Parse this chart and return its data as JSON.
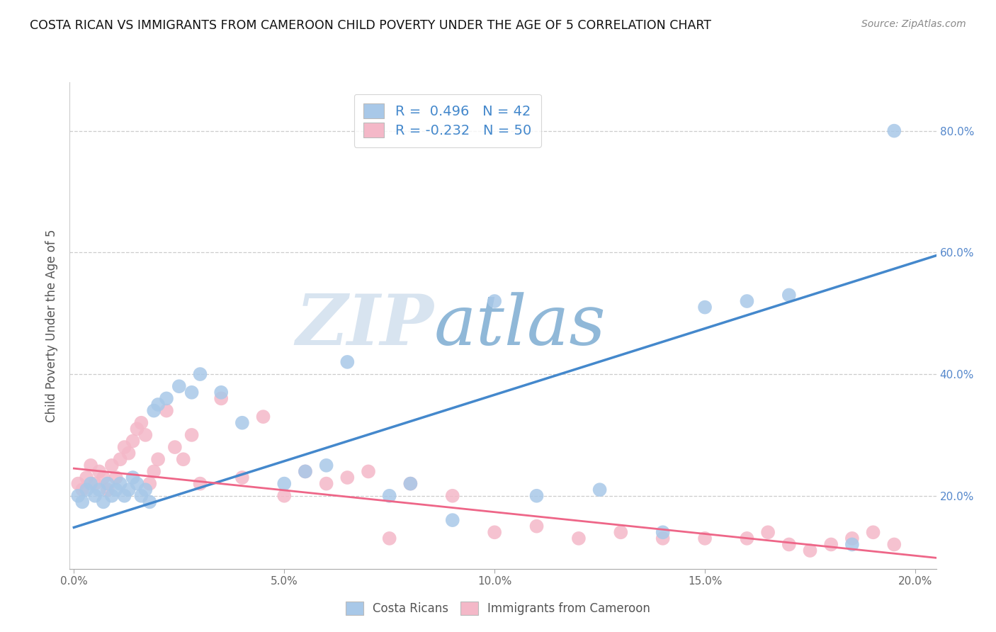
{
  "title": "COSTA RICAN VS IMMIGRANTS FROM CAMEROON CHILD POVERTY UNDER THE AGE OF 5 CORRELATION CHART",
  "source": "Source: ZipAtlas.com",
  "ylabel": "Child Poverty Under the Age of 5",
  "xlim": [
    -0.001,
    0.205
  ],
  "ylim": [
    0.08,
    0.88
  ],
  "xticks": [
    0.0,
    0.05,
    0.1,
    0.15,
    0.2
  ],
  "yticks": [
    0.2,
    0.4,
    0.6,
    0.8
  ],
  "xticklabels": [
    "0.0%",
    "5.0%",
    "10.0%",
    "15.0%",
    "20.0%"
  ],
  "yticklabels": [
    "20.0%",
    "40.0%",
    "60.0%",
    "80.0%"
  ],
  "blue_R": 0.496,
  "blue_N": 42,
  "pink_R": -0.232,
  "pink_N": 50,
  "blue_color": "#a8c8e8",
  "pink_color": "#f4b8c8",
  "blue_line_color": "#4488cc",
  "pink_line_color": "#ee6688",
  "tick_color": "#5588cc",
  "watermark_zip": "ZIP",
  "watermark_atlas": "atlas",
  "watermark_color_zip": "#d8e4f0",
  "watermark_color_atlas": "#90b8d8",
  "background_color": "#ffffff",
  "grid_color": "#cccccc",
  "blue_scatter_x": [
    0.001,
    0.002,
    0.003,
    0.004,
    0.005,
    0.006,
    0.007,
    0.008,
    0.009,
    0.01,
    0.011,
    0.012,
    0.013,
    0.014,
    0.015,
    0.016,
    0.017,
    0.018,
    0.019,
    0.02,
    0.022,
    0.025,
    0.028,
    0.03,
    0.035,
    0.04,
    0.05,
    0.055,
    0.06,
    0.065,
    0.075,
    0.08,
    0.09,
    0.1,
    0.11,
    0.125,
    0.14,
    0.15,
    0.16,
    0.17,
    0.185,
    0.195
  ],
  "blue_scatter_y": [
    0.2,
    0.19,
    0.21,
    0.22,
    0.2,
    0.21,
    0.19,
    0.22,
    0.2,
    0.21,
    0.22,
    0.2,
    0.21,
    0.23,
    0.22,
    0.2,
    0.21,
    0.19,
    0.34,
    0.35,
    0.36,
    0.38,
    0.37,
    0.4,
    0.37,
    0.32,
    0.22,
    0.24,
    0.25,
    0.42,
    0.2,
    0.22,
    0.16,
    0.52,
    0.2,
    0.21,
    0.14,
    0.51,
    0.52,
    0.53,
    0.12,
    0.8
  ],
  "pink_scatter_x": [
    0.001,
    0.002,
    0.003,
    0.004,
    0.005,
    0.006,
    0.007,
    0.008,
    0.009,
    0.01,
    0.011,
    0.012,
    0.013,
    0.014,
    0.015,
    0.016,
    0.017,
    0.018,
    0.019,
    0.02,
    0.022,
    0.024,
    0.026,
    0.028,
    0.03,
    0.035,
    0.04,
    0.045,
    0.05,
    0.055,
    0.06,
    0.065,
    0.07,
    0.075,
    0.08,
    0.09,
    0.1,
    0.11,
    0.12,
    0.13,
    0.14,
    0.15,
    0.16,
    0.165,
    0.17,
    0.175,
    0.18,
    0.185,
    0.19,
    0.195
  ],
  "pink_scatter_y": [
    0.22,
    0.21,
    0.23,
    0.25,
    0.22,
    0.24,
    0.23,
    0.21,
    0.25,
    0.23,
    0.26,
    0.28,
    0.27,
    0.29,
    0.31,
    0.32,
    0.3,
    0.22,
    0.24,
    0.26,
    0.34,
    0.28,
    0.26,
    0.3,
    0.22,
    0.36,
    0.23,
    0.33,
    0.2,
    0.24,
    0.22,
    0.23,
    0.24,
    0.13,
    0.22,
    0.2,
    0.14,
    0.15,
    0.13,
    0.14,
    0.13,
    0.13,
    0.13,
    0.14,
    0.12,
    0.11,
    0.12,
    0.13,
    0.14,
    0.12
  ],
  "blue_trend_x": [
    0.0,
    0.205
  ],
  "blue_trend_y": [
    0.148,
    0.595
  ],
  "pink_trend_x": [
    0.0,
    0.205
  ],
  "pink_trend_y": [
    0.245,
    0.098
  ]
}
